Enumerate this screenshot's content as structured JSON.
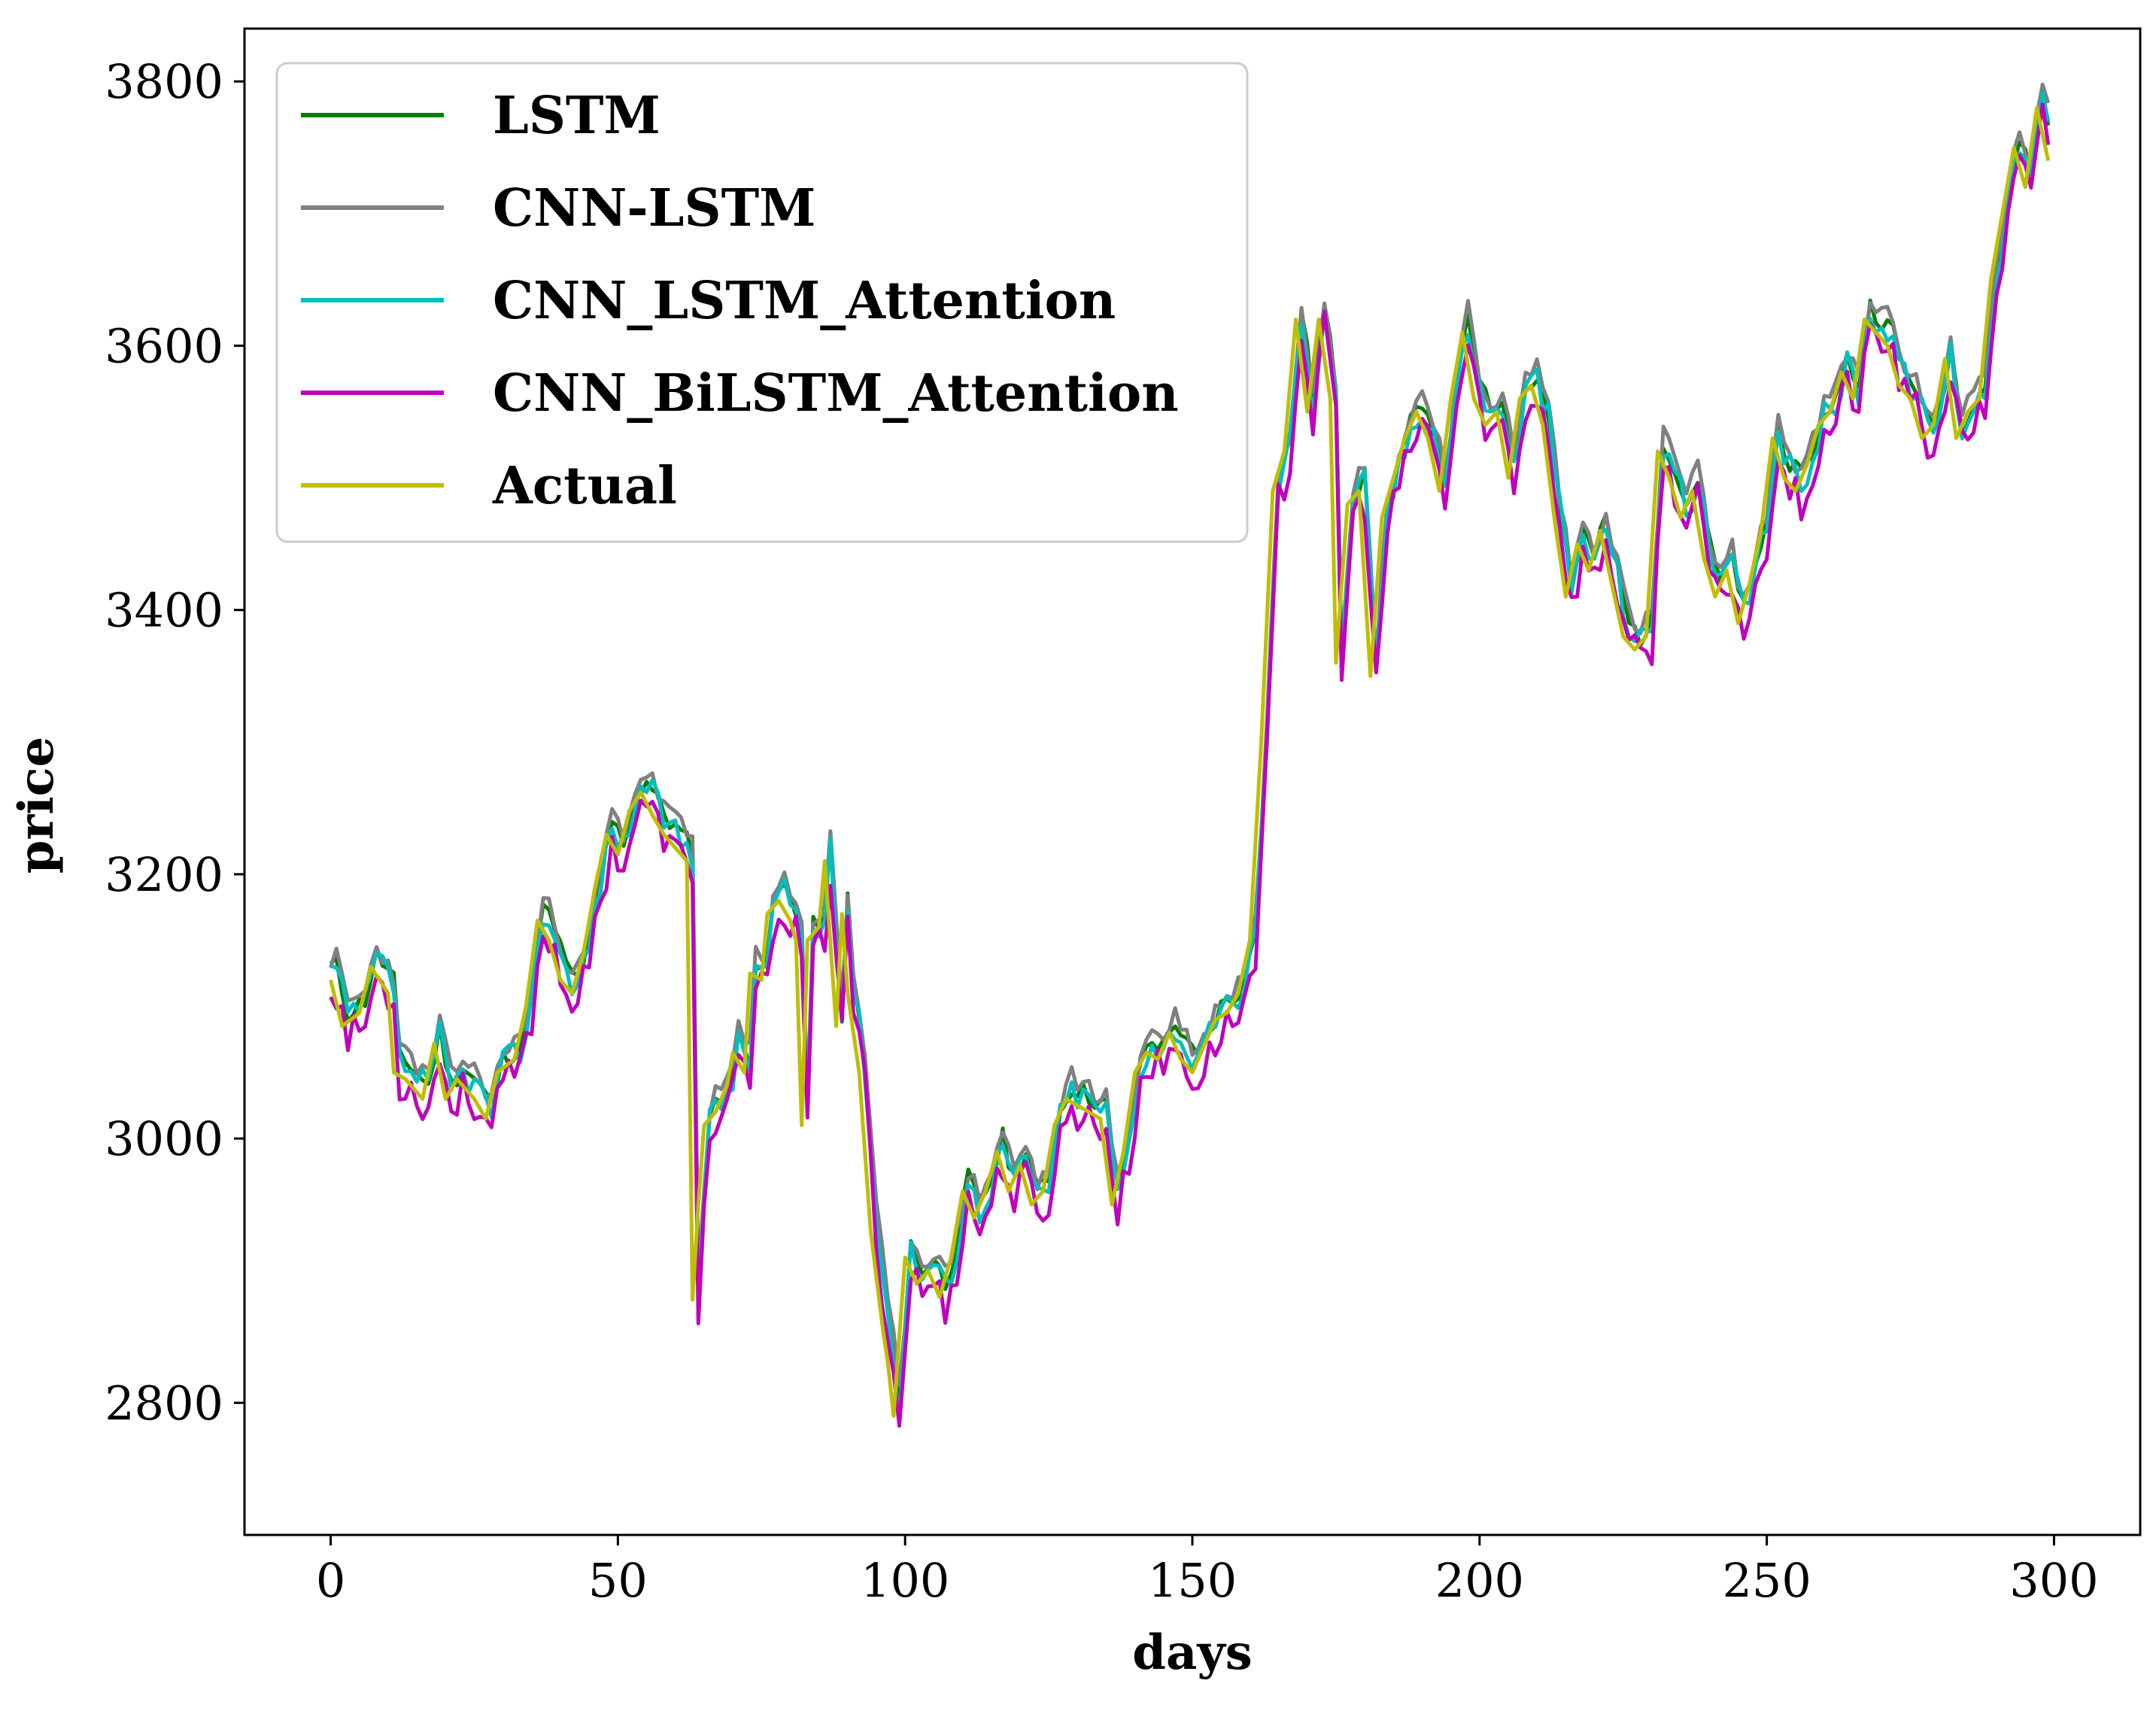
{
  "chart_data": {
    "type": "line",
    "title": "",
    "xlabel": "days",
    "ylabel": "price",
    "xlim": [
      -15,
      315
    ],
    "ylim": [
      2700,
      3840
    ],
    "xticks": [
      0,
      50,
      100,
      150,
      200,
      250,
      300
    ],
    "yticks": [
      2800,
      3000,
      3200,
      3400,
      3600,
      3800
    ],
    "grid": false,
    "legend_position": "top-left",
    "series": [
      {
        "name": "LSTM",
        "color": "#008000",
        "offset": 10,
        "noise": 8,
        "seed": 11
      },
      {
        "name": "CNN-LSTM",
        "color": "#808080",
        "offset": 16,
        "noise": 9,
        "seed": 23
      },
      {
        "name": "CNN_LSTM_Attention",
        "color": "#00BFBF",
        "offset": 6,
        "noise": 12,
        "seed": 37
      },
      {
        "name": "CNN_BiLSTM_Attention",
        "color": "#BF00BF",
        "offset": -8,
        "noise": 14,
        "seed": 53
      },
      {
        "name": "Actual",
        "color": "#BFBF00",
        "offset": 0,
        "noise": 0,
        "seed": 0
      }
    ],
    "actual_keypoints": [
      [
        0,
        3120
      ],
      [
        2,
        3085
      ],
      [
        5,
        3095
      ],
      [
        7,
        3130
      ],
      [
        10,
        3110
      ],
      [
        11,
        3050
      ],
      [
        13,
        3045
      ],
      [
        16,
        3030
      ],
      [
        18,
        3072
      ],
      [
        20,
        3030
      ],
      [
        22,
        3045
      ],
      [
        25,
        3030
      ],
      [
        27,
        3015
      ],
      [
        29,
        3050
      ],
      [
        32,
        3060
      ],
      [
        34,
        3100
      ],
      [
        36,
        3165
      ],
      [
        38,
        3150
      ],
      [
        40,
        3120
      ],
      [
        42,
        3110
      ],
      [
        44,
        3140
      ],
      [
        46,
        3190
      ],
      [
        48,
        3230
      ],
      [
        50,
        3215
      ],
      [
        52,
        3248
      ],
      [
        54,
        3262
      ],
      [
        56,
        3245
      ],
      [
        58,
        3230
      ],
      [
        60,
        3220
      ],
      [
        62,
        3210
      ],
      [
        63,
        2878
      ],
      [
        64,
        2950
      ],
      [
        65,
        3010
      ],
      [
        67,
        3020
      ],
      [
        69,
        3040
      ],
      [
        70,
        3065
      ],
      [
        72,
        3050
      ],
      [
        73,
        3125
      ],
      [
        75,
        3120
      ],
      [
        76,
        3170
      ],
      [
        78,
        3180
      ],
      [
        80,
        3165
      ],
      [
        81,
        3150
      ],
      [
        82,
        3010
      ],
      [
        83,
        3150
      ],
      [
        85,
        3160
      ],
      [
        86,
        3210
      ],
      [
        88,
        3085
      ],
      [
        89,
        3170
      ],
      [
        90,
        3110
      ],
      [
        92,
        3050
      ],
      [
        94,
        2930
      ],
      [
        96,
        2860
      ],
      [
        97,
        2830
      ],
      [
        98,
        2790
      ],
      [
        100,
        2910
      ],
      [
        102,
        2890
      ],
      [
        104,
        2900
      ],
      [
        106,
        2880
      ],
      [
        108,
        2910
      ],
      [
        110,
        2960
      ],
      [
        112,
        2940
      ],
      [
        114,
        2960
      ],
      [
        116,
        2990
      ],
      [
        118,
        2960
      ],
      [
        120,
        2980
      ],
      [
        122,
        2950
      ],
      [
        124,
        2960
      ],
      [
        126,
        3010
      ],
      [
        128,
        3030
      ],
      [
        130,
        3025
      ],
      [
        132,
        3020
      ],
      [
        134,
        3015
      ],
      [
        136,
        2950
      ],
      [
        138,
        2990
      ],
      [
        140,
        3050
      ],
      [
        142,
        3065
      ],
      [
        144,
        3060
      ],
      [
        146,
        3080
      ],
      [
        148,
        3060
      ],
      [
        150,
        3050
      ],
      [
        152,
        3070
      ],
      [
        154,
        3090
      ],
      [
        156,
        3095
      ],
      [
        158,
        3110
      ],
      [
        160,
        3150
      ],
      [
        162,
        3300
      ],
      [
        164,
        3490
      ],
      [
        166,
        3520
      ],
      [
        168,
        3620
      ],
      [
        170,
        3550
      ],
      [
        172,
        3620
      ],
      [
        174,
        3560
      ],
      [
        175,
        3360
      ],
      [
        177,
        3480
      ],
      [
        179,
        3490
      ],
      [
        181,
        3350
      ],
      [
        183,
        3470
      ],
      [
        185,
        3500
      ],
      [
        187,
        3530
      ],
      [
        189,
        3550
      ],
      [
        191,
        3530
      ],
      [
        193,
        3490
      ],
      [
        195,
        3560
      ],
      [
        197,
        3610
      ],
      [
        199,
        3560
      ],
      [
        201,
        3540
      ],
      [
        203,
        3550
      ],
      [
        205,
        3500
      ],
      [
        207,
        3560
      ],
      [
        209,
        3570
      ],
      [
        211,
        3540
      ],
      [
        213,
        3470
      ],
      [
        215,
        3410
      ],
      [
        217,
        3450
      ],
      [
        219,
        3430
      ],
      [
        221,
        3460
      ],
      [
        223,
        3420
      ],
      [
        225,
        3380
      ],
      [
        227,
        3370
      ],
      [
        229,
        3380
      ],
      [
        231,
        3520
      ],
      [
        233,
        3500
      ],
      [
        235,
        3470
      ],
      [
        237,
        3490
      ],
      [
        239,
        3440
      ],
      [
        241,
        3410
      ],
      [
        243,
        3430
      ],
      [
        245,
        3390
      ],
      [
        247,
        3420
      ],
      [
        249,
        3460
      ],
      [
        251,
        3530
      ],
      [
        253,
        3500
      ],
      [
        255,
        3490
      ],
      [
        257,
        3510
      ],
      [
        259,
        3540
      ],
      [
        261,
        3550
      ],
      [
        263,
        3580
      ],
      [
        265,
        3560
      ],
      [
        267,
        3620
      ],
      [
        269,
        3610
      ],
      [
        271,
        3600
      ],
      [
        273,
        3570
      ],
      [
        275,
        3560
      ],
      [
        277,
        3530
      ],
      [
        279,
        3540
      ],
      [
        281,
        3590
      ],
      [
        283,
        3530
      ],
      [
        285,
        3550
      ],
      [
        287,
        3560
      ],
      [
        289,
        3650
      ],
      [
        291,
        3700
      ],
      [
        293,
        3750
      ],
      [
        295,
        3720
      ],
      [
        297,
        3780
      ],
      [
        299,
        3740
      ]
    ]
  }
}
